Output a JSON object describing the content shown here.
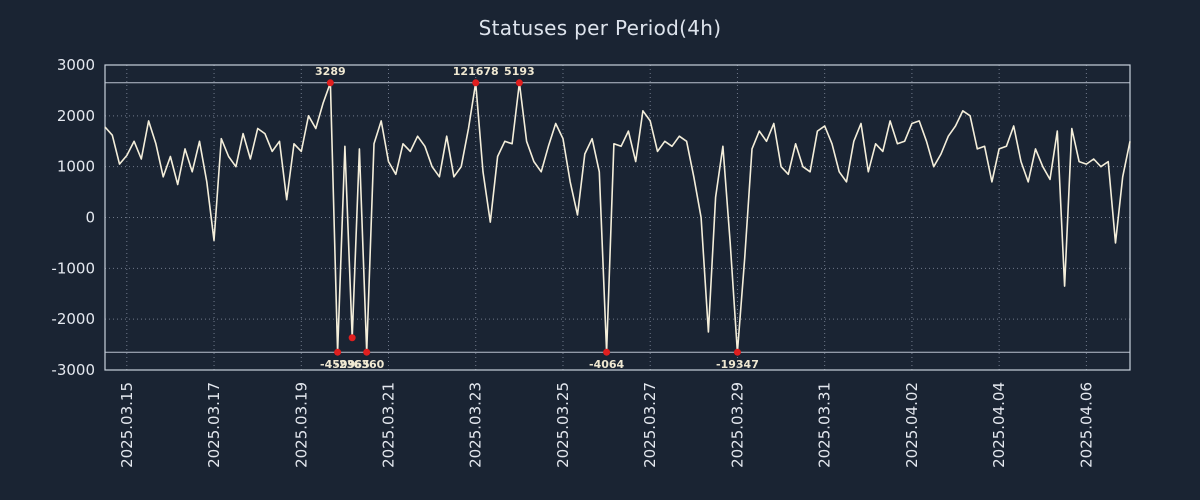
{
  "colors": {
    "background": "#1a2433",
    "line": "#f4eeda",
    "grid": "#8d96a8",
    "axis": "#c9d1dd",
    "clip_line": "#ccd3df",
    "tick_text": "#e4e8ef",
    "title_text": "#dde3ec",
    "marker": "#e01f1f",
    "marker_label": "#efe8d2"
  },
  "chart_data": {
    "type": "line",
    "title": "Statuses per Period(4h)",
    "period": "4h",
    "xlabel": "",
    "ylabel": "",
    "ylim": [
      -3000,
      3000
    ],
    "y_ticks": [
      3000,
      2000,
      1000,
      0,
      -1000,
      -2000,
      -3000
    ],
    "x_tick_labels": [
      "2025.03.15",
      "2025.03.17",
      "2025.03.19",
      "2025.03.21",
      "2025.03.23",
      "2025.03.25",
      "2025.03.27",
      "2025.03.29",
      "2025.03.31",
      "2025.04.02",
      "2025.04.04",
      "2025.04.06"
    ],
    "x_tick_indices": [
      3,
      15,
      27,
      39,
      51,
      63,
      75,
      87,
      99,
      111,
      123,
      135
    ],
    "grid": "dotted",
    "legend": "none",
    "clip": {
      "top": 2650,
      "bottom": -2650
    },
    "values": [
      1780,
      1620,
      1050,
      1220,
      1500,
      1150,
      1900,
      1450,
      800,
      1200,
      650,
      1350,
      900,
      1500,
      700,
      -450,
      1550,
      1200,
      1000,
      1650,
      1150,
      1750,
      1650,
      1300,
      1500,
      350,
      1450,
      1300,
      2000,
      1750,
      2250,
      3289,
      -4599,
      1400,
      -2365,
      1350,
      -6360,
      1450,
      1900,
      1100,
      850,
      1450,
      1300,
      1600,
      1400,
      1000,
      800,
      1600,
      800,
      1000,
      1750,
      121678,
      900,
      -90,
      1200,
      1500,
      1450,
      5193,
      1500,
      1100,
      900,
      1400,
      1850,
      1550,
      700,
      50,
      1250,
      1550,
      900,
      -4064,
      1450,
      1400,
      1700,
      1100,
      2100,
      1900,
      1300,
      1500,
      1400,
      1600,
      1500,
      800,
      0,
      -2250,
      400,
      1400,
      -500,
      -19347,
      -800,
      1350,
      1700,
      1500,
      1850,
      1000,
      850,
      1450,
      1000,
      900,
      1700,
      1800,
      1450,
      900,
      700,
      1500,
      1850,
      900,
      1450,
      1300,
      1900,
      1450,
      1500,
      1850,
      1900,
      1500,
      1000,
      1250,
      1600,
      1800,
      2100,
      2000,
      1350,
      1400,
      700,
      1350,
      1400,
      1800,
      1100,
      700,
      1350,
      1000,
      750,
      1700,
      -1350,
      1750,
      1100,
      1050,
      1150,
      1000,
      1100,
      -500,
      800,
      1500
    ],
    "extremes": [
      {
        "index": 31,
        "value": 3289,
        "label": "3289"
      },
      {
        "index": 32,
        "value": -4599,
        "label": "-4599"
      },
      {
        "index": 34,
        "value": -2365,
        "label": "-2365"
      },
      {
        "index": 36,
        "value": -6360,
        "label": "-6360"
      },
      {
        "index": 51,
        "value": 121678,
        "label": "121678"
      },
      {
        "index": 57,
        "value": 5193,
        "label": "5193"
      },
      {
        "index": 69,
        "value": -4064,
        "label": "-4064"
      },
      {
        "index": 87,
        "value": -19347,
        "label": "-19347"
      }
    ]
  }
}
